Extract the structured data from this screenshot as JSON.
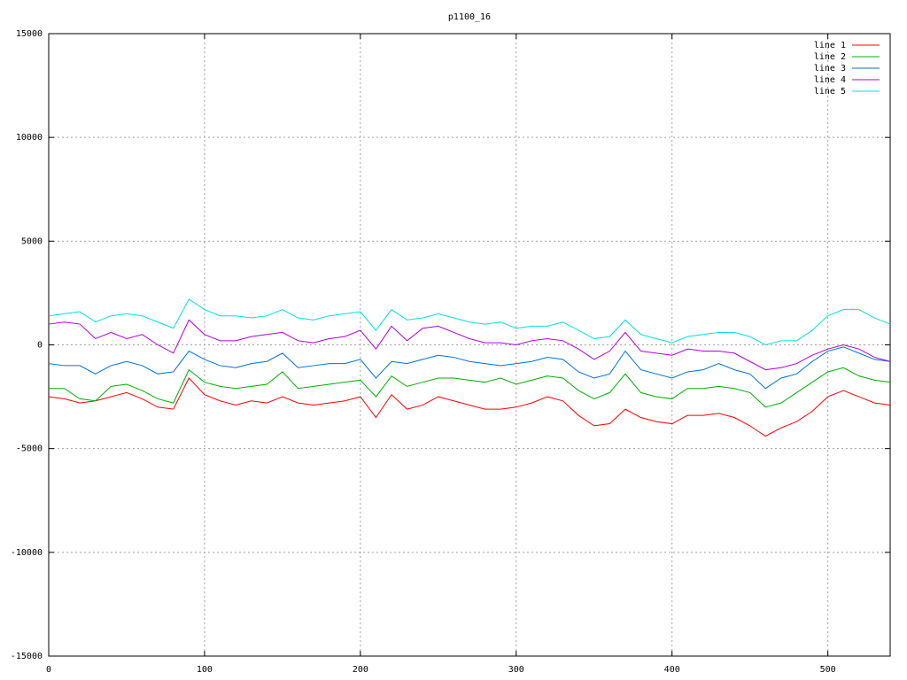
{
  "chart_data": {
    "type": "line",
    "title": "p1100_16",
    "x": [
      0,
      10,
      20,
      30,
      40,
      50,
      60,
      70,
      80,
      90,
      100,
      110,
      120,
      130,
      140,
      150,
      160,
      170,
      180,
      190,
      200,
      210,
      220,
      230,
      240,
      250,
      260,
      270,
      280,
      290,
      300,
      310,
      320,
      330,
      340,
      350,
      360,
      370,
      380,
      390,
      400,
      410,
      420,
      430,
      440,
      450,
      460,
      470,
      480,
      490,
      500,
      510,
      520,
      530,
      540
    ],
    "xlim": [
      0,
      540
    ],
    "xticks": [
      0,
      100,
      200,
      300,
      400,
      500
    ],
    "ylim": [
      -15000,
      15000
    ],
    "yticks": [
      -15000,
      -10000,
      -5000,
      0,
      5000,
      10000,
      15000
    ],
    "grid": true,
    "legend": "top-right",
    "series": [
      {
        "name": "line 1",
        "color": "#ff0000",
        "values": [
          -2500,
          -2600,
          -2800,
          -2700,
          -2500,
          -2300,
          -2600,
          -3000,
          -3100,
          -1600,
          -2400,
          -2700,
          -2900,
          -2700,
          -2800,
          -2500,
          -2800,
          -2900,
          -2800,
          -2700,
          -2500,
          -3500,
          -2400,
          -3100,
          -2900,
          -2500,
          -2700,
          -2900,
          -3100,
          -3100,
          -3000,
          -2800,
          -2500,
          -2700,
          -3400,
          -3900,
          -3800,
          -3100,
          -3500,
          -3700,
          -3800,
          -3400,
          -3400,
          -3300,
          -3500,
          -3900,
          -4400,
          -4000,
          -3700,
          -3200,
          -2500,
          -2200,
          -2500,
          -2800,
          -2900
        ]
      },
      {
        "name": "line 2",
        "color": "#00b000",
        "values": [
          -2100,
          -2100,
          -2600,
          -2700,
          -2000,
          -1900,
          -2200,
          -2600,
          -2800,
          -1200,
          -1800,
          -2000,
          -2100,
          -2000,
          -1900,
          -1300,
          -2100,
          -2000,
          -1900,
          -1800,
          -1700,
          -2500,
          -1500,
          -2000,
          -1800,
          -1600,
          -1600,
          -1700,
          -1800,
          -1600,
          -1900,
          -1700,
          -1500,
          -1600,
          -2200,
          -2600,
          -2300,
          -1400,
          -2300,
          -2500,
          -2600,
          -2100,
          -2100,
          -2000,
          -2100,
          -2300,
          -3000,
          -2800,
          -2300,
          -1800,
          -1300,
          -1100,
          -1500,
          -1700,
          -1800
        ]
      },
      {
        "name": "line 3",
        "color": "#0070e0",
        "values": [
          -900,
          -1000,
          -1000,
          -1400,
          -1000,
          -800,
          -1000,
          -1400,
          -1300,
          -300,
          -700,
          -1000,
          -1100,
          -900,
          -800,
          -400,
          -1100,
          -1000,
          -900,
          -900,
          -700,
          -1600,
          -800,
          -900,
          -700,
          -500,
          -600,
          -800,
          -900,
          -1000,
          -900,
          -800,
          -600,
          -700,
          -1300,
          -1600,
          -1400,
          -300,
          -1200,
          -1400,
          -1600,
          -1300,
          -1200,
          -900,
          -1200,
          -1400,
          -2100,
          -1600,
          -1400,
          -800,
          -300,
          -100,
          -400,
          -700,
          -800
        ]
      },
      {
        "name": "line 4",
        "color": "#b000e0",
        "values": [
          1000,
          1100,
          1000,
          300,
          600,
          300,
          500,
          0,
          -400,
          1200,
          500,
          200,
          200,
          400,
          500,
          600,
          200,
          100,
          300,
          400,
          700,
          -200,
          900,
          200,
          800,
          900,
          600,
          300,
          100,
          100,
          0,
          200,
          300,
          200,
          -200,
          -700,
          -300,
          600,
          -300,
          -400,
          -500,
          -200,
          -300,
          -300,
          -400,
          -800,
          -1200,
          -1100,
          -900,
          -500,
          -200,
          0,
          -200,
          -600,
          -800
        ]
      },
      {
        "name": "line 5",
        "color": "#00e0e0",
        "values": [
          1400,
          1500,
          1600,
          1100,
          1400,
          1500,
          1400,
          1100,
          800,
          2200,
          1700,
          1400,
          1400,
          1300,
          1400,
          1700,
          1300,
          1200,
          1400,
          1500,
          1600,
          700,
          1700,
          1200,
          1300,
          1500,
          1300,
          1100,
          1000,
          1100,
          800,
          900,
          900,
          1100,
          700,
          300,
          400,
          1200,
          500,
          300,
          100,
          400,
          500,
          600,
          600,
          400,
          0,
          200,
          200,
          700,
          1400,
          1700,
          1700,
          1300,
          1000
        ]
      }
    ]
  }
}
